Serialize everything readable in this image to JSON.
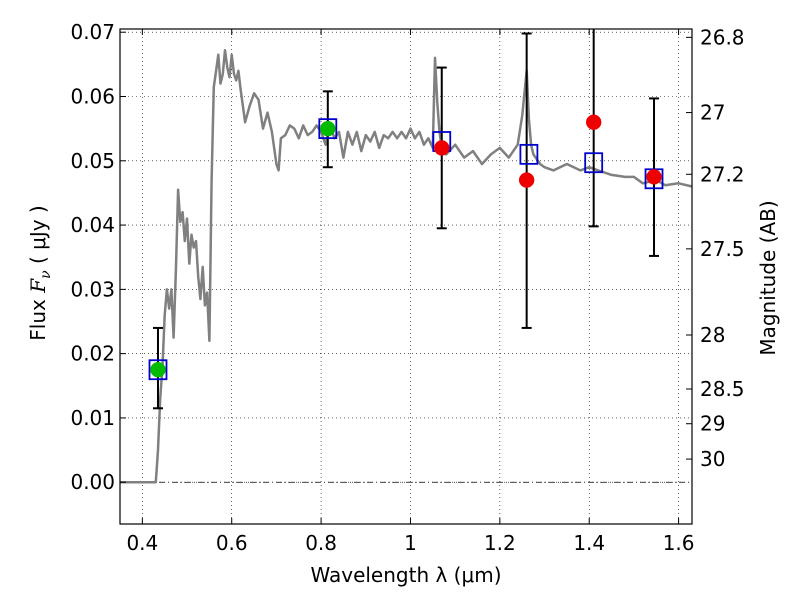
{
  "chart_data": {
    "type": "scatter",
    "xlabel": "Wavelength  λ (μm)",
    "ylabel_left": {
      "prefix": "Flux  ",
      "symbol": "F",
      "subscript": "ν",
      "suffix": "  ( μJy )"
    },
    "ylabel_right": "Magnitude (AB)",
    "xlim": [
      0.35,
      1.63
    ],
    "ylim": [
      -0.0065,
      0.0705
    ],
    "grid": true,
    "zero_line": true,
    "xticks": [
      0.4,
      0.6,
      0.8,
      1.0,
      1.2,
      1.4,
      1.6
    ],
    "xtick_labels": [
      "0.4",
      "0.6",
      "0.8",
      "1",
      "1.2",
      "1.4",
      "1.6"
    ],
    "yticks": [
      0.0,
      0.01,
      0.02,
      0.03,
      0.04,
      0.05,
      0.06,
      0.07
    ],
    "ytick_labels": [
      "0.00",
      "0.01",
      "0.02",
      "0.03",
      "0.04",
      "0.05",
      "0.06",
      "0.07"
    ],
    "mag_ticks": [
      {
        "label": "26.8",
        "flux": 0.0692
      },
      {
        "label": "27",
        "flux": 0.0575
      },
      {
        "label": "27.2",
        "flux": 0.0479
      },
      {
        "label": "27.5",
        "flux": 0.0363
      },
      {
        "label": "28",
        "flux": 0.0229
      },
      {
        "label": "28.5",
        "flux": 0.0145
      },
      {
        "label": "29",
        "flux": 0.0091
      },
      {
        "label": "30",
        "flux": 0.0036
      }
    ],
    "series": [
      {
        "name": "model spectrum",
        "kind": "line",
        "color": "#808080",
        "x": [
          0.35,
          0.43,
          0.435,
          0.44,
          0.445,
          0.45,
          0.455,
          0.46,
          0.465,
          0.47,
          0.475,
          0.48,
          0.485,
          0.49,
          0.495,
          0.5,
          0.505,
          0.51,
          0.515,
          0.52,
          0.525,
          0.53,
          0.535,
          0.54,
          0.545,
          0.55,
          0.555,
          0.56,
          0.565,
          0.57,
          0.575,
          0.58,
          0.585,
          0.59,
          0.595,
          0.6,
          0.605,
          0.61,
          0.615,
          0.62,
          0.63,
          0.64,
          0.65,
          0.66,
          0.67,
          0.68,
          0.69,
          0.7,
          0.705,
          0.71,
          0.72,
          0.73,
          0.74,
          0.75,
          0.76,
          0.77,
          0.78,
          0.79,
          0.8,
          0.81,
          0.82,
          0.83,
          0.84,
          0.85,
          0.86,
          0.87,
          0.88,
          0.89,
          0.9,
          0.91,
          0.92,
          0.93,
          0.94,
          0.95,
          0.96,
          0.97,
          0.98,
          0.99,
          1.0,
          1.01,
          1.02,
          1.03,
          1.04,
          1.05,
          1.055,
          1.06,
          1.065,
          1.07,
          1.08,
          1.1,
          1.12,
          1.14,
          1.16,
          1.18,
          1.2,
          1.22,
          1.24,
          1.25,
          1.26,
          1.265,
          1.27,
          1.275,
          1.28,
          1.29,
          1.3,
          1.32,
          1.35,
          1.38,
          1.4,
          1.42,
          1.45,
          1.48,
          1.5,
          1.52,
          1.55,
          1.57,
          1.6,
          1.63
        ],
        "y": [
          0.0,
          0.0,
          0.005,
          0.013,
          0.018,
          0.026,
          0.03,
          0.027,
          0.03,
          0.0225,
          0.033,
          0.0455,
          0.0405,
          0.042,
          0.0375,
          0.041,
          0.034,
          0.0385,
          0.0365,
          0.0375,
          0.032,
          0.0285,
          0.0335,
          0.0275,
          0.0295,
          0.022,
          0.047,
          0.0615,
          0.064,
          0.0665,
          0.062,
          0.0635,
          0.0672,
          0.0645,
          0.063,
          0.0665,
          0.0635,
          0.0625,
          0.064,
          0.061,
          0.056,
          0.0585,
          0.0605,
          0.0595,
          0.055,
          0.0575,
          0.0545,
          0.0495,
          0.0485,
          0.0535,
          0.054,
          0.0555,
          0.055,
          0.0535,
          0.0555,
          0.054,
          0.0545,
          0.0555,
          0.0545,
          0.0525,
          0.0555,
          0.0535,
          0.0545,
          0.0505,
          0.0545,
          0.0525,
          0.0545,
          0.0515,
          0.054,
          0.053,
          0.0545,
          0.052,
          0.054,
          0.0535,
          0.0545,
          0.0535,
          0.0545,
          0.0535,
          0.055,
          0.0535,
          0.0545,
          0.0525,
          0.0535,
          0.052,
          0.066,
          0.059,
          0.0545,
          0.052,
          0.051,
          0.0525,
          0.0505,
          0.0515,
          0.0495,
          0.051,
          0.052,
          0.0505,
          0.0525,
          0.057,
          0.064,
          0.0565,
          0.0525,
          0.051,
          0.0505,
          0.0495,
          0.049,
          0.0485,
          0.0495,
          0.0485,
          0.049,
          0.0485,
          0.0478,
          0.0475,
          0.0475,
          0.0465,
          0.047,
          0.0462,
          0.0465,
          0.046
        ]
      },
      {
        "name": "model photometry",
        "kind": "open-square",
        "color": "#0000cc",
        "x": [
          0.435,
          0.815,
          1.07,
          1.265,
          1.41,
          1.545
        ],
        "y": [
          0.0175,
          0.055,
          0.053,
          0.051,
          0.0497,
          0.0472
        ]
      },
      {
        "name": "photometry (green)",
        "kind": "filled-circle",
        "color": "#00bb00",
        "x": [
          0.435,
          0.815
        ],
        "y": [
          0.0175,
          0.055
        ],
        "yerr_low": [
          0.006,
          0.006
        ],
        "yerr_high": [
          0.0065,
          0.0058
        ]
      },
      {
        "name": "photometry (red)",
        "kind": "filled-circle",
        "color": "#ee0000",
        "x": [
          1.07,
          1.26,
          1.41,
          1.545
        ],
        "y": [
          0.052,
          0.047,
          0.056,
          0.0475
        ],
        "yerr_low": [
          0.0125,
          0.023,
          0.0162,
          0.0123
        ],
        "yerr_high": [
          0.0125,
          0.0228,
          0.0145,
          0.0122
        ]
      }
    ]
  }
}
